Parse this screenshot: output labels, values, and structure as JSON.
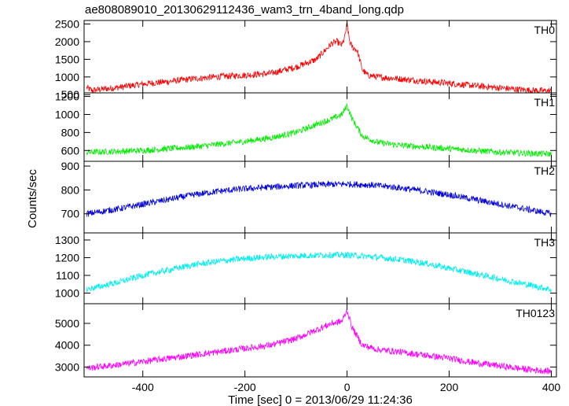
{
  "title": "ae808089010_20130629112436_wam3_trn_4band_long.qdp",
  "chart_data": {
    "type": "line",
    "title": "ae808089010_20130629112436_wam3_trn_4band_long.qdp",
    "xlabel": "Time [sec] 0 = 2013/06/29 11:24:36",
    "ylabel": "Counts/sec",
    "xlim": [
      -515,
      410
    ],
    "xticks": [
      -400,
      -200,
      0,
      200,
      400
    ],
    "grid": false,
    "panels": [
      {
        "name": "TH0",
        "color": "#ff0000",
        "ylim": [
          550,
          2600
        ],
        "yticks": [
          500,
          1000,
          1500,
          2000,
          2500
        ],
        "x": [
          -510,
          -500,
          -450,
          -400,
          -350,
          -300,
          -250,
          -200,
          -150,
          -100,
          -60,
          -40,
          -30,
          -20,
          -10,
          -5,
          0,
          5,
          10,
          20,
          30,
          40,
          60,
          100,
          150,
          200,
          250,
          300,
          350,
          400
        ],
        "y": [
          700,
          620,
          700,
          800,
          870,
          950,
          1010,
          1050,
          1100,
          1280,
          1500,
          1800,
          1950,
          2000,
          1900,
          2100,
          2500,
          2000,
          1850,
          1750,
          1200,
          1050,
          1000,
          950,
          880,
          820,
          750,
          690,
          630,
          600
        ]
      },
      {
        "name": "TH1",
        "color": "#00ee00",
        "ylim": [
          480,
          1240
        ],
        "yticks": [
          600,
          800,
          1000,
          1200
        ],
        "x": [
          -510,
          -450,
          -400,
          -350,
          -300,
          -250,
          -200,
          -150,
          -100,
          -60,
          -30,
          -10,
          0,
          10,
          30,
          60,
          100,
          150,
          200,
          250,
          300,
          350,
          400
        ],
        "y": [
          580,
          590,
          600,
          620,
          640,
          670,
          700,
          740,
          800,
          890,
          950,
          1000,
          1100,
          950,
          760,
          690,
          660,
          640,
          620,
          600,
          580,
          570,
          560
        ]
      },
      {
        "name": "TH2",
        "color": "#0000dd",
        "ylim": [
          620,
          920
        ],
        "yticks": [
          700,
          800,
          900
        ],
        "x": [
          -510,
          -450,
          -400,
          -350,
          -300,
          -250,
          -200,
          -150,
          -100,
          -50,
          0,
          50,
          100,
          150,
          200,
          250,
          300,
          350,
          400
        ],
        "y": [
          700,
          720,
          740,
          760,
          780,
          795,
          805,
          812,
          818,
          822,
          825,
          820,
          810,
          795,
          780,
          760,
          740,
          720,
          700
        ]
      },
      {
        "name": "TH3",
        "color": "#00eeee",
        "ylim": [
          940,
          1340
        ],
        "yticks": [
          1000,
          1100,
          1200,
          1300
        ],
        "x": [
          -510,
          -450,
          -400,
          -350,
          -300,
          -250,
          -200,
          -150,
          -100,
          -50,
          0,
          50,
          100,
          150,
          200,
          250,
          300,
          350,
          400
        ],
        "y": [
          1020,
          1060,
          1100,
          1130,
          1160,
          1180,
          1195,
          1205,
          1210,
          1215,
          1215,
          1205,
          1190,
          1170,
          1140,
          1110,
          1080,
          1050,
          1020
        ]
      },
      {
        "name": "TH0123",
        "color": "#ff00ff",
        "ylim": [
          2550,
          5900
        ],
        "yticks": [
          3000,
          4000,
          5000
        ],
        "x": [
          -510,
          -450,
          -400,
          -350,
          -300,
          -250,
          -200,
          -150,
          -100,
          -60,
          -30,
          -10,
          0,
          10,
          30,
          60,
          100,
          150,
          200,
          250,
          300,
          350,
          400
        ],
        "y": [
          2950,
          3100,
          3250,
          3400,
          3550,
          3700,
          3850,
          4000,
          4300,
          4700,
          5000,
          5100,
          5600,
          4800,
          4000,
          3800,
          3700,
          3550,
          3400,
          3200,
          3050,
          2900,
          2800
        ]
      }
    ]
  }
}
